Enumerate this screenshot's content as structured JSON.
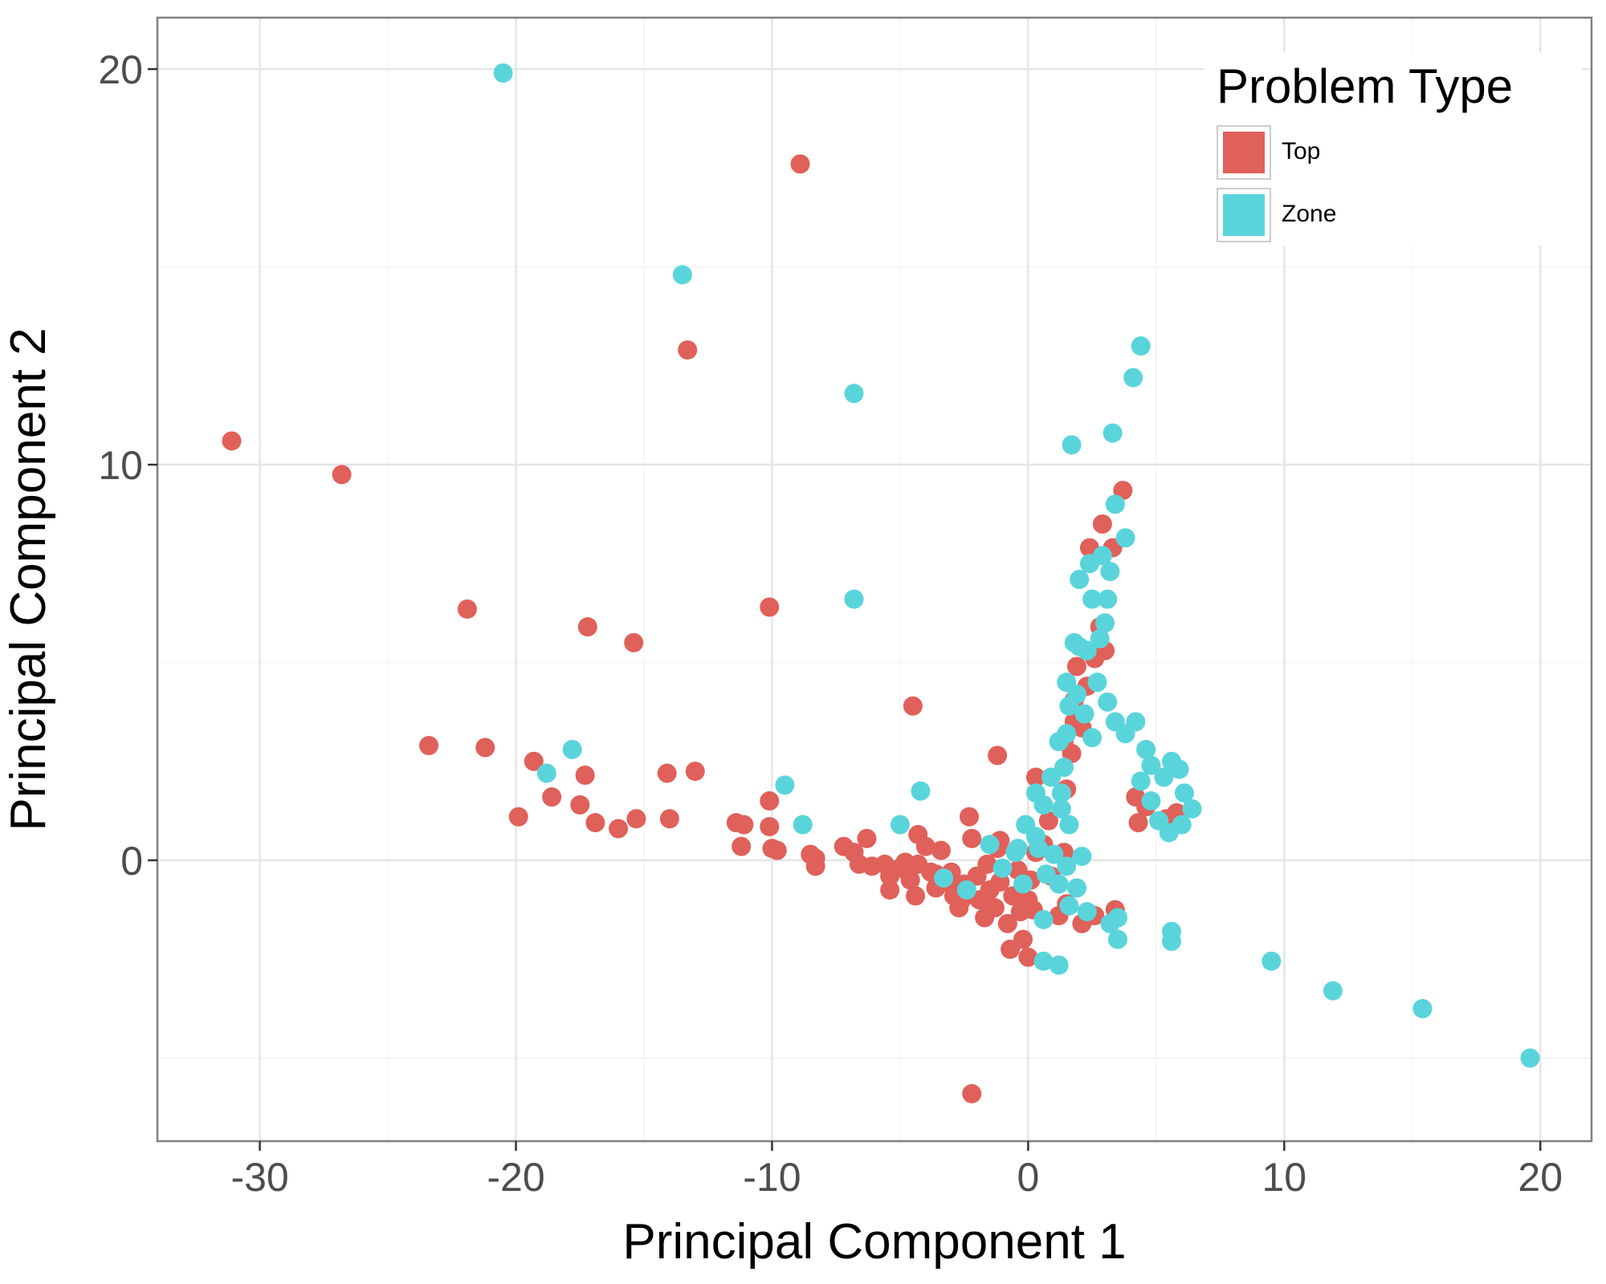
{
  "chart_data": {
    "type": "scatter",
    "title": "",
    "xlabel": "Principal Component 1",
    "ylabel": "Principal Component 2",
    "xlim": [
      -34,
      22
    ],
    "ylim": [
      -7.1,
      21.3
    ],
    "x_ticks": [
      -30,
      -20,
      -10,
      0,
      10,
      20
    ],
    "y_ticks": [
      0,
      10,
      20
    ],
    "x_tick_labels": [
      "-30",
      "-20",
      "-10",
      "0",
      "10",
      "20"
    ],
    "y_tick_labels": [
      "0",
      "10",
      "20"
    ],
    "grid": true,
    "legend": {
      "title": "Problem Type",
      "position": "top-right"
    },
    "series": [
      {
        "name": "Top",
        "color": "#E0605A",
        "points": [
          [
            -31.1,
            10.6
          ],
          [
            -26.8,
            9.75
          ],
          [
            -21.9,
            6.35
          ],
          [
            -17.2,
            5.9
          ],
          [
            -15.4,
            5.5
          ],
          [
            -13.3,
            12.9
          ],
          [
            -8.9,
            17.6
          ],
          [
            -10.1,
            6.4
          ],
          [
            -23.4,
            2.9
          ],
          [
            -21.2,
            2.85
          ],
          [
            -19.3,
            2.5
          ],
          [
            -17.3,
            2.15
          ],
          [
            -14.1,
            2.2
          ],
          [
            -13.0,
            2.25
          ],
          [
            -18.6,
            1.6
          ],
          [
            -17.5,
            1.4
          ],
          [
            -19.9,
            1.1
          ],
          [
            -16.9,
            0.95
          ],
          [
            -16.0,
            0.8
          ],
          [
            -15.3,
            1.05
          ],
          [
            -14.0,
            1.05
          ],
          [
            -11.4,
            0.95
          ],
          [
            -11.1,
            0.9
          ],
          [
            -10.1,
            0.85
          ],
          [
            -10.1,
            1.5
          ],
          [
            -11.2,
            0.35
          ],
          [
            -10.0,
            0.3
          ],
          [
            -9.8,
            0.25
          ],
          [
            -8.5,
            0.15
          ],
          [
            -8.3,
            0.05
          ],
          [
            -8.3,
            -0.15
          ],
          [
            -7.2,
            0.35
          ],
          [
            -6.8,
            0.2
          ],
          [
            -6.3,
            0.55
          ],
          [
            -6.6,
            -0.1
          ],
          [
            -6.1,
            -0.15
          ],
          [
            -5.6,
            -0.1
          ],
          [
            -5.4,
            -0.4
          ],
          [
            -5.4,
            -0.75
          ],
          [
            -5.0,
            -0.2
          ],
          [
            -4.8,
            -0.05
          ],
          [
            -4.6,
            -0.5
          ],
          [
            -4.4,
            -0.9
          ],
          [
            -4.3,
            -0.1
          ],
          [
            -4.3,
            0.65
          ],
          [
            -4.0,
            0.35
          ],
          [
            -3.8,
            -0.3
          ],
          [
            -3.6,
            -0.7
          ],
          [
            -3.4,
            0.25
          ],
          [
            -3.2,
            -0.55
          ],
          [
            -3.0,
            -0.3
          ],
          [
            -2.9,
            -0.9
          ],
          [
            -2.7,
            -1.2
          ],
          [
            -2.5,
            -0.6
          ],
          [
            -2.3,
            1.1
          ],
          [
            -2.2,
            0.55
          ],
          [
            -2.0,
            -0.4
          ],
          [
            -1.9,
            -1.0
          ],
          [
            -1.7,
            -1.45
          ],
          [
            -1.6,
            -0.1
          ],
          [
            -1.5,
            -0.75
          ],
          [
            -1.3,
            -1.2
          ],
          [
            -1.2,
            0.3
          ],
          [
            -1.1,
            -0.55
          ],
          [
            -0.8,
            -1.6
          ],
          [
            -0.6,
            -0.9
          ],
          [
            -0.4,
            -0.25
          ],
          [
            -0.3,
            -1.3
          ],
          [
            0.0,
            -1.0
          ],
          [
            0.1,
            -0.5
          ],
          [
            0.2,
            -1.25
          ],
          [
            0.3,
            0.2
          ],
          [
            -0.2,
            -2.0
          ],
          [
            -0.7,
            -2.25
          ],
          [
            0.0,
            -2.45
          ],
          [
            -2.2,
            -5.9
          ],
          [
            -4.5,
            3.9
          ],
          [
            -1.2,
            2.65
          ],
          [
            0.3,
            2.1
          ],
          [
            1.5,
            1.8
          ],
          [
            1.7,
            2.7
          ],
          [
            1.4,
            3.0
          ],
          [
            1.8,
            3.5
          ],
          [
            2.1,
            3.35
          ],
          [
            1.8,
            4.05
          ],
          [
            2.3,
            4.4
          ],
          [
            1.9,
            4.9
          ],
          [
            2.6,
            5.1
          ],
          [
            3.0,
            5.3
          ],
          [
            2.8,
            5.9
          ],
          [
            2.4,
            7.9
          ],
          [
            2.9,
            8.5
          ],
          [
            3.3,
            7.9
          ],
          [
            3.7,
            9.35
          ],
          [
            4.2,
            1.6
          ],
          [
            4.6,
            1.35
          ],
          [
            5.4,
            1.05
          ],
          [
            5.8,
            1.2
          ],
          [
            4.3,
            0.95
          ],
          [
            0.8,
            1.0
          ],
          [
            0.6,
            0.4
          ],
          [
            1.4,
            0.2
          ],
          [
            0.9,
            -0.4
          ],
          [
            1.5,
            -1.1
          ],
          [
            2.1,
            -1.6
          ],
          [
            2.6,
            -1.4
          ],
          [
            3.4,
            -1.25
          ],
          [
            1.2,
            -1.4
          ],
          [
            -1.1,
            0.5
          ],
          [
            -3.6,
            -0.35
          ],
          [
            -2.6,
            -1.0
          ]
        ]
      },
      {
        "name": "Zone",
        "color": "#5AD4DB",
        "points": [
          [
            -20.5,
            19.9
          ],
          [
            -13.5,
            14.8
          ],
          [
            -6.8,
            11.8
          ],
          [
            -6.8,
            6.6
          ],
          [
            -17.8,
            2.8
          ],
          [
            -18.8,
            2.2
          ],
          [
            -9.5,
            1.9
          ],
          [
            -8.8,
            0.9
          ],
          [
            -5.0,
            0.9
          ],
          [
            -4.2,
            1.75
          ],
          [
            -3.3,
            -0.45
          ],
          [
            -2.4,
            -0.75
          ],
          [
            -1.5,
            0.4
          ],
          [
            -1.0,
            -0.2
          ],
          [
            -0.5,
            0.2
          ],
          [
            -0.2,
            -0.6
          ],
          [
            -0.1,
            0.9
          ],
          [
            0.3,
            1.7
          ],
          [
            0.4,
            0.3
          ],
          [
            0.7,
            -0.35
          ],
          [
            1.0,
            0.15
          ],
          [
            1.2,
            -0.6
          ],
          [
            1.5,
            -0.15
          ],
          [
            1.9,
            -0.7
          ],
          [
            2.1,
            0.1
          ],
          [
            0.6,
            -2.55
          ],
          [
            1.2,
            -2.65
          ],
          [
            0.6,
            -1.5
          ],
          [
            1.6,
            -1.15
          ],
          [
            2.3,
            -1.3
          ],
          [
            3.2,
            -1.6
          ],
          [
            3.5,
            -2.0
          ],
          [
            3.5,
            -1.45
          ],
          [
            5.6,
            -1.8
          ],
          [
            5.6,
            -2.05
          ],
          [
            9.5,
            -2.55
          ],
          [
            11.9,
            -3.3
          ],
          [
            15.4,
            -3.75
          ],
          [
            19.6,
            -5.0
          ],
          [
            1.3,
            1.3
          ],
          [
            1.6,
            0.9
          ],
          [
            1.4,
            2.35
          ],
          [
            1.5,
            3.2
          ],
          [
            1.6,
            3.9
          ],
          [
            1.5,
            4.5
          ],
          [
            1.8,
            5.5
          ],
          [
            2.0,
            5.4
          ],
          [
            2.3,
            5.3
          ],
          [
            2.8,
            5.6
          ],
          [
            3.0,
            6.0
          ],
          [
            3.1,
            6.6
          ],
          [
            2.5,
            6.6
          ],
          [
            2.0,
            7.1
          ],
          [
            2.4,
            7.5
          ],
          [
            2.9,
            7.7
          ],
          [
            3.2,
            7.3
          ],
          [
            3.4,
            9.0
          ],
          [
            3.8,
            8.15
          ],
          [
            3.3,
            10.8
          ],
          [
            1.7,
            10.5
          ],
          [
            4.1,
            12.2
          ],
          [
            4.4,
            13.0
          ],
          [
            2.7,
            4.5
          ],
          [
            3.1,
            4.0
          ],
          [
            3.4,
            3.5
          ],
          [
            3.8,
            3.2
          ],
          [
            4.2,
            3.5
          ],
          [
            4.6,
            2.8
          ],
          [
            4.8,
            2.4
          ],
          [
            5.3,
            2.1
          ],
          [
            5.6,
            2.5
          ],
          [
            5.9,
            2.3
          ],
          [
            6.1,
            1.7
          ],
          [
            6.4,
            1.3
          ],
          [
            6.0,
            0.9
          ],
          [
            5.5,
            0.7
          ],
          [
            5.1,
            1.0
          ],
          [
            4.8,
            1.5
          ],
          [
            4.4,
            2.0
          ],
          [
            2.2,
            3.7
          ],
          [
            2.5,
            3.1
          ],
          [
            1.2,
            3.0
          ],
          [
            0.9,
            2.1
          ],
          [
            1.3,
            1.7
          ],
          [
            0.6,
            1.4
          ],
          [
            0.3,
            0.6
          ],
          [
            -0.4,
            0.3
          ],
          [
            1.9,
            4.2
          ]
        ]
      }
    ]
  }
}
